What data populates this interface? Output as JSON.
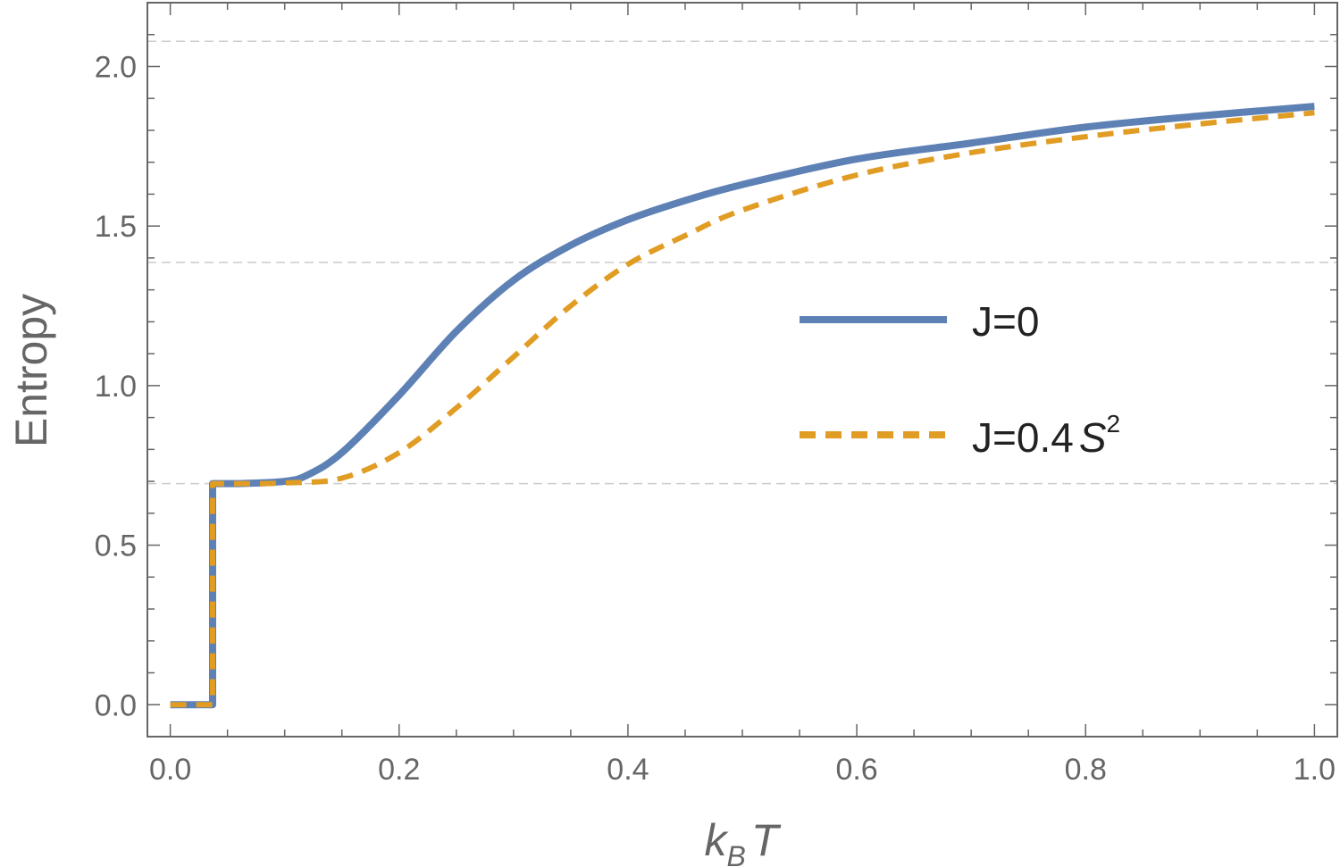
{
  "chart_data": {
    "type": "line",
    "xlabel": "k_B T",
    "ylabel": "Entropy",
    "xlim": [
      -0.02,
      1.02
    ],
    "ylim": [
      -0.1,
      2.2
    ],
    "x_ticks": [
      "0.0",
      "0.2",
      "0.4",
      "0.6",
      "0.8",
      "1.0"
    ],
    "y_ticks": [
      "0.0",
      "0.5",
      "1.0",
      "1.5",
      "2.0"
    ],
    "grid": "horizontal dashed at y = ln2, ln4, ln8",
    "reference_lines": [
      0.693,
      1.386,
      2.079
    ],
    "legend_position": "center-right",
    "series": [
      {
        "name": "J=0",
        "label_main": "J=0",
        "label_sup": "",
        "color": "#5e81b5",
        "style": "solid",
        "x": [
          0.0,
          0.037,
          0.037,
          0.06,
          0.1,
          0.12,
          0.15,
          0.2,
          0.25,
          0.3,
          0.35,
          0.4,
          0.45,
          0.5,
          0.6,
          0.7,
          0.8,
          0.9,
          1.0
        ],
        "y": [
          0.0,
          0.0,
          0.693,
          0.693,
          0.7,
          0.72,
          0.79,
          0.97,
          1.17,
          1.33,
          1.44,
          1.52,
          1.58,
          1.63,
          1.71,
          1.76,
          1.81,
          1.845,
          1.875
        ]
      },
      {
        "name": "J=0.4S^2",
        "label_main": "J=0.4",
        "label_sup": "2",
        "label_var": "S",
        "color": "#e19c24",
        "style": "dashed",
        "x": [
          0.0,
          0.037,
          0.037,
          0.06,
          0.1,
          0.15,
          0.2,
          0.25,
          0.3,
          0.35,
          0.4,
          0.45,
          0.5,
          0.6,
          0.7,
          0.8,
          0.9,
          1.0
        ],
        "y": [
          0.0,
          0.0,
          0.693,
          0.693,
          0.695,
          0.71,
          0.79,
          0.93,
          1.09,
          1.25,
          1.38,
          1.47,
          1.55,
          1.66,
          1.73,
          1.78,
          1.82,
          1.855
        ]
      }
    ]
  }
}
